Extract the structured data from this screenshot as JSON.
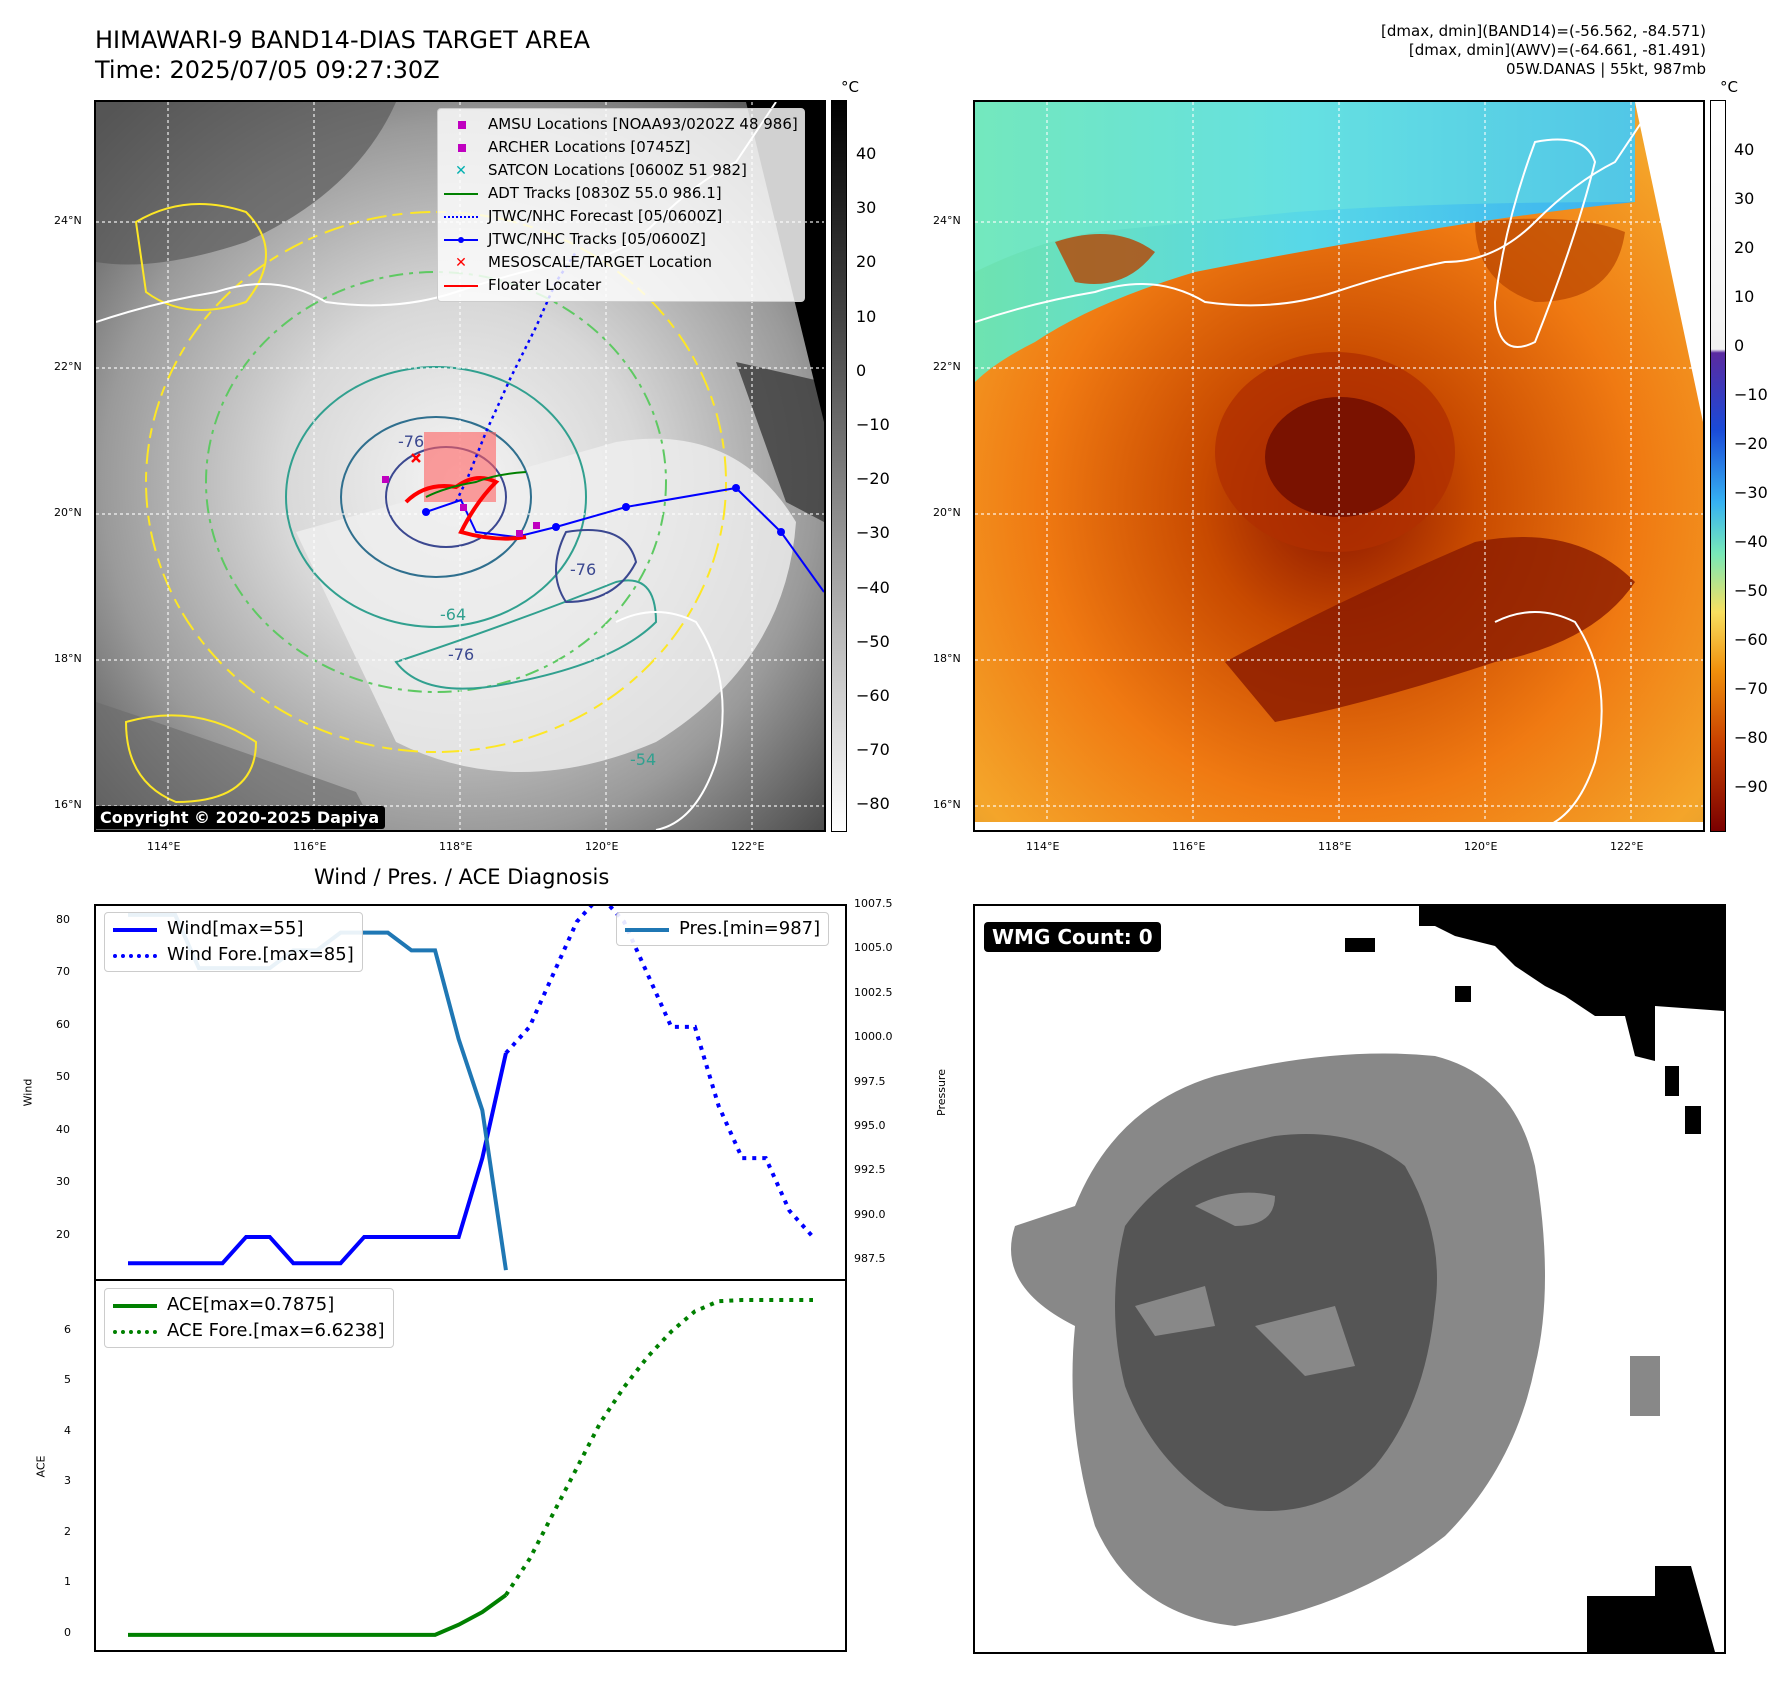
{
  "header": {
    "title": "HIMAWARI-9 BAND14-DIAS TARGET AREA",
    "time": "Time: 2025/07/05 09:27:30Z",
    "info_line1": "[dmax, dmin](BAND14)=(-56.562, -84.571)",
    "info_line2": "[dmax, dmin](AWV)=(-64.661, -81.491)",
    "info_line3": "05W.DANAS | 55kt, 987mb"
  },
  "map_axes": {
    "lon_labels": [
      "114°E",
      "116°E",
      "118°E",
      "120°E",
      "122°E"
    ],
    "lat_labels": [
      "24°N",
      "22°N",
      "20°N",
      "18°N",
      "16°N"
    ]
  },
  "left_map": {
    "colorbar_unit": "°C",
    "colorbar_ticks": [
      "40",
      "30",
      "20",
      "10",
      "0",
      "−10",
      "−20",
      "−30",
      "−40",
      "−50",
      "−60",
      "−70",
      "−80"
    ],
    "contour_labels": [
      "-76",
      "-64",
      "-54",
      "-76",
      "-64",
      "-76",
      "-54",
      "-64",
      "-54"
    ],
    "legend": [
      {
        "label": "AMSU Locations [NOAA93/0202Z 48 986]",
        "marker": "square",
        "color": "#c000c0"
      },
      {
        "label": "ARCHER Locations [0745Z]",
        "marker": "square",
        "color": "#c000c0"
      },
      {
        "label": "SATCON Locations [0600Z 51 982]",
        "marker": "x",
        "color": "#00b0b0"
      },
      {
        "label": "ADT Tracks [0830Z 55.0 986.1]",
        "marker": "line",
        "color": "#008000"
      },
      {
        "label": "JTWC/NHC Forecast [05/0600Z]",
        "marker": "dotted",
        "color": "#0000ff"
      },
      {
        "label": "JTWC/NHC Tracks [05/0600Z]",
        "marker": "line-dot",
        "color": "#0000ff"
      },
      {
        "label": "MESOSCALE/TARGET Location",
        "marker": "x",
        "color": "#ff0000"
      },
      {
        "label": "Floater Locater",
        "marker": "line",
        "color": "#ff0000"
      }
    ],
    "copyright": "Copyright © 2020-2025 Dapiya"
  },
  "right_map": {
    "colorbar_unit": "°C",
    "colorbar_ticks": [
      "40",
      "30",
      "20",
      "10",
      "0",
      "−10",
      "−20",
      "−30",
      "−40",
      "−50",
      "−60",
      "−70",
      "−80",
      "−90"
    ]
  },
  "diagnosis": {
    "title": "Wind / Pres. / ACE Diagnosis",
    "wind_ylabel": "Wind",
    "pres_ylabel": "Pressure",
    "ace_ylabel": "ACE",
    "wind_legend": [
      "Wind[max=55]",
      "Wind Fore.[max=85]"
    ],
    "pres_legend": [
      "Pres.[min=987]"
    ],
    "ace_legend": [
      "ACE[max=0.7875]",
      "ACE Fore.[max=6.6238]"
    ]
  },
  "wmg": {
    "label": "WMG Count: 0"
  },
  "chart_data": [
    {
      "type": "line",
      "series": [
        {
          "name": "Wind[max=55]",
          "axis": "left",
          "x": [
            0,
            1,
            2,
            3,
            4,
            5,
            6,
            7,
            8,
            9,
            10,
            11,
            12,
            13,
            14,
            15,
            16
          ],
          "values": [
            15,
            15,
            15,
            15,
            15,
            20,
            20,
            15,
            15,
            15,
            20,
            20,
            20,
            20,
            20,
            35,
            55
          ]
        },
        {
          "name": "Wind Fore.[max=85]",
          "axis": "left",
          "x": [
            16,
            17,
            18,
            19,
            20,
            21,
            22,
            23,
            24,
            25,
            26,
            27,
            28,
            29
          ],
          "values": [
            55,
            60,
            70,
            80,
            85,
            80,
            70,
            60,
            60,
            45,
            35,
            35,
            25,
            20
          ]
        },
        {
          "name": "Pres.[min=987]",
          "axis": "right",
          "x": [
            0,
            1,
            2,
            3,
            4,
            5,
            6,
            7,
            8,
            9,
            10,
            11,
            12,
            13,
            14,
            15,
            16
          ],
          "values": [
            1007,
            1007,
            1007,
            1004,
            1004,
            1004,
            1004,
            1005,
            1005,
            1006,
            1006,
            1006,
            1005,
            1005,
            1000,
            996,
            987
          ]
        }
      ],
      "ylim": [
        12,
        83
      ],
      "y2lim": [
        986.5,
        1007.5
      ],
      "yticks": [
        20,
        30,
        40,
        50,
        60,
        70,
        80
      ],
      "y2ticks": [
        "1007.5",
        "1005.0",
        "1002.5",
        "1000.0",
        "997.5",
        "995.0",
        "992.5",
        "990.0",
        "987.5"
      ]
    },
    {
      "type": "line",
      "series": [
        {
          "name": "ACE[max=0.7875]",
          "x": [
            0,
            13,
            14,
            15,
            16
          ],
          "values": [
            0,
            0,
            0.2,
            0.45,
            0.7875
          ]
        },
        {
          "name": "ACE Fore.[max=6.6238]",
          "x": [
            16,
            17,
            18,
            19,
            20,
            21,
            22,
            23,
            24,
            25,
            26,
            27,
            28,
            29
          ],
          "values": [
            0.7875,
            1.5,
            2.4,
            3.3,
            4.2,
            4.9,
            5.5,
            6.0,
            6.4,
            6.6,
            6.6238,
            6.6238,
            6.6238,
            6.6238
          ]
        }
      ],
      "ylim": [
        -0.3,
        7.0
      ],
      "yticks": [
        0,
        1,
        2,
        3,
        4,
        5,
        6
      ]
    }
  ]
}
